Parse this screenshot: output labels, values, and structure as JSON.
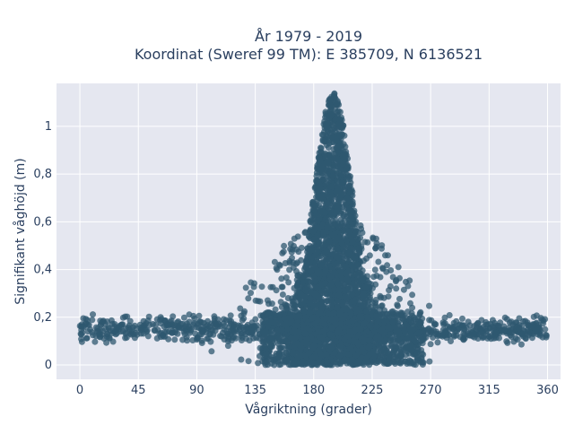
{
  "chart_data": {
    "type": "scatter",
    "title_line1": "År 1979 - 2019",
    "title_line2": "Koordinat (Sweref 99 TM): E 385709, N 6136521",
    "xlabel": "Vågriktning (grader)",
    "ylabel": "Signifikant våghöjd (m)",
    "xlim": [
      -18,
      370
    ],
    "ylim": [
      -0.06,
      1.18
    ],
    "xticks": [
      0,
      45,
      90,
      135,
      180,
      225,
      270,
      315,
      360
    ],
    "xtick_labels": [
      "0",
      "45",
      "90",
      "135",
      "180",
      "225",
      "270",
      "315",
      "360"
    ],
    "yticks": [
      0,
      0.2,
      0.4,
      0.6,
      0.8,
      1
    ],
    "ytick_labels": [
      "0",
      "0,2",
      "0,4",
      "0,6",
      "0,8",
      "1"
    ],
    "grid": true,
    "point_color": "#2f5870",
    "plot_background": "#e5e7f0",
    "density_shape": {
      "peak_direction": 195,
      "peak_height": 1.14,
      "core_half_width": 22,
      "shoulder_half_width": 55,
      "background_height_range": [
        0.08,
        0.22
      ],
      "low_band_range": [
        0.0,
        0.22
      ]
    }
  }
}
